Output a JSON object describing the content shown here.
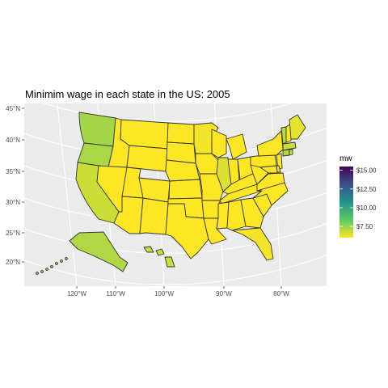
{
  "chart_data": {
    "type": "choropleth-map",
    "title": "Minimim wage in each state in the US: 2005",
    "fill_variable": "mw",
    "x_ticks": [
      "120°W",
      "110°W",
      "100°W",
      "90°W",
      "80°W"
    ],
    "y_ticks": [
      "45°N",
      "40°N",
      "35°N",
      "30°N",
      "25°N",
      "20°N"
    ],
    "grid": true,
    "legend": {
      "title": "mw",
      "position": "right",
      "labels": [
        "$15.00",
        "$12.50",
        "$10.00",
        "$7.50"
      ],
      "breaks": [
        15,
        12.5,
        10,
        7.5
      ],
      "range": [
        6,
        15.5
      ],
      "colors": [
        "#fde725",
        "#5ec962",
        "#21918c",
        "#3b528b",
        "#440154"
      ]
    },
    "values": {
      "WA": 7.35,
      "OR": 7.25,
      "CA": 6.75,
      "NV": 5.15,
      "ID": 5.15,
      "MT": 5.15,
      "WY": 5.15,
      "UT": 5.15,
      "AZ": 5.15,
      "CO": 5.15,
      "NM": 5.15,
      "ND": 5.15,
      "SD": 5.15,
      "NE": 5.15,
      "KS": 5.15,
      "OK": 5.15,
      "TX": 5.15,
      "MN": 6.15,
      "IA": 5.15,
      "MO": 5.15,
      "AR": 5.15,
      "LA": 5.15,
      "WI": 5.7,
      "IL": 6.5,
      "MI": 5.15,
      "IN": 5.15,
      "OH": 5.15,
      "KY": 5.15,
      "TN": 5.15,
      "MS": 5.15,
      "AL": 5.15,
      "GA": 5.15,
      "FL": 6.15,
      "SC": 5.15,
      "NC": 5.15,
      "VA": 5.15,
      "WV": 5.15,
      "PA": 5.15,
      "NY": 6.0,
      "VT": 7.0,
      "NH": 5.15,
      "ME": 6.35,
      "MA": 6.75,
      "CT": 7.1,
      "RI": 6.75,
      "NJ": 5.15,
      "DE": 6.15,
      "MD": 5.15,
      "AK": 7.15,
      "HI": 6.75
    }
  }
}
